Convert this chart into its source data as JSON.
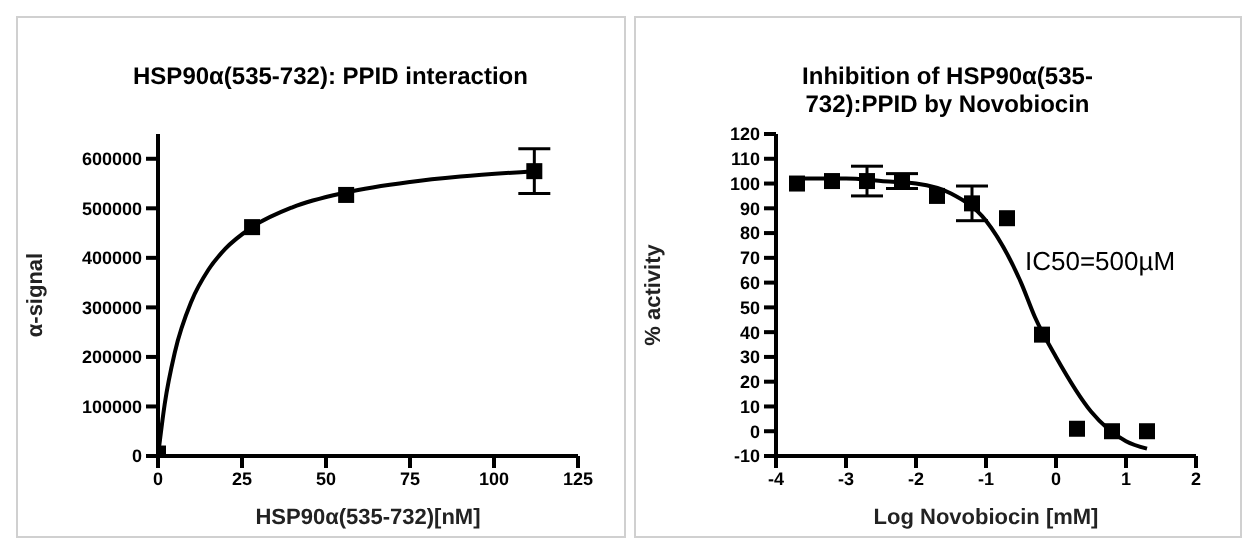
{
  "chart_data": [
    {
      "type": "scatter",
      "title": "HSP90α(535-732): PPID interaction",
      "xlabel": "HSP90α(535-732)[nM]",
      "ylabel": "α-signal",
      "xlim": [
        0,
        125
      ],
      "xticks": [
        0,
        25,
        50,
        75,
        100,
        125
      ],
      "ylim": [
        0,
        650000
      ],
      "yticks": [
        0,
        100000,
        200000,
        300000,
        400000,
        500000,
        600000
      ],
      "grid": false,
      "legend": false,
      "series": [
        {
          "color": "#000000",
          "marker": "square",
          "x": [
            0,
            28,
            56,
            112
          ],
          "values": [
            5000,
            462000,
            527000,
            575000
          ],
          "errors": [
            null,
            null,
            null,
            45000
          ]
        },
        {
          "type": "line",
          "color": "#000000",
          "line_style": "solid",
          "x": [
            0,
            2,
            5,
            10,
            15,
            20,
            28,
            40,
            56,
            75,
            90,
            112
          ],
          "values": [
            0,
            105000,
            209000,
            313000,
            376000,
            418000,
            462000,
            502000,
            532000,
            553000,
            564000,
            575000
          ]
        }
      ]
    },
    {
      "type": "scatter",
      "title": "Inhibition of HSP90α(535-732):PPID by Novobiocin",
      "xlabel": "Log Novobiocin [mM]",
      "ylabel": "% activity",
      "annotations": [
        "IC50=500µM"
      ],
      "xlim": [
        -4,
        2
      ],
      "xticks": [
        -4,
        -3,
        -2,
        -1,
        0,
        1,
        2
      ],
      "ylim": [
        -10,
        120
      ],
      "yticks": [
        -10,
        0,
        10,
        20,
        30,
        40,
        50,
        60,
        70,
        80,
        90,
        100,
        110,
        120
      ],
      "grid": false,
      "legend": false,
      "series": [
        {
          "color": "#000000",
          "marker": "square",
          "x": [
            -3.7,
            -3.2,
            -2.7,
            -2.2,
            -1.7,
            -1.2,
            -0.7,
            -0.2,
            0.3,
            0.8,
            1.3
          ],
          "values": [
            100,
            101,
            101,
            101,
            95,
            92,
            86,
            39,
            1,
            0,
            0
          ],
          "errors": [
            null,
            null,
            6,
            3,
            null,
            7,
            null,
            null,
            null,
            null,
            null
          ]
        },
        {
          "type": "line",
          "color": "#000000",
          "line_style": "solid",
          "x": [
            -3.7,
            -3,
            -2.5,
            -2,
            -1.5,
            -1,
            -0.5,
            -0.3,
            0,
            0.5,
            1,
            1.3
          ],
          "values": [
            102,
            102,
            101,
            100,
            96,
            85,
            60,
            46,
            30,
            8,
            -4,
            -7
          ]
        }
      ]
    }
  ]
}
